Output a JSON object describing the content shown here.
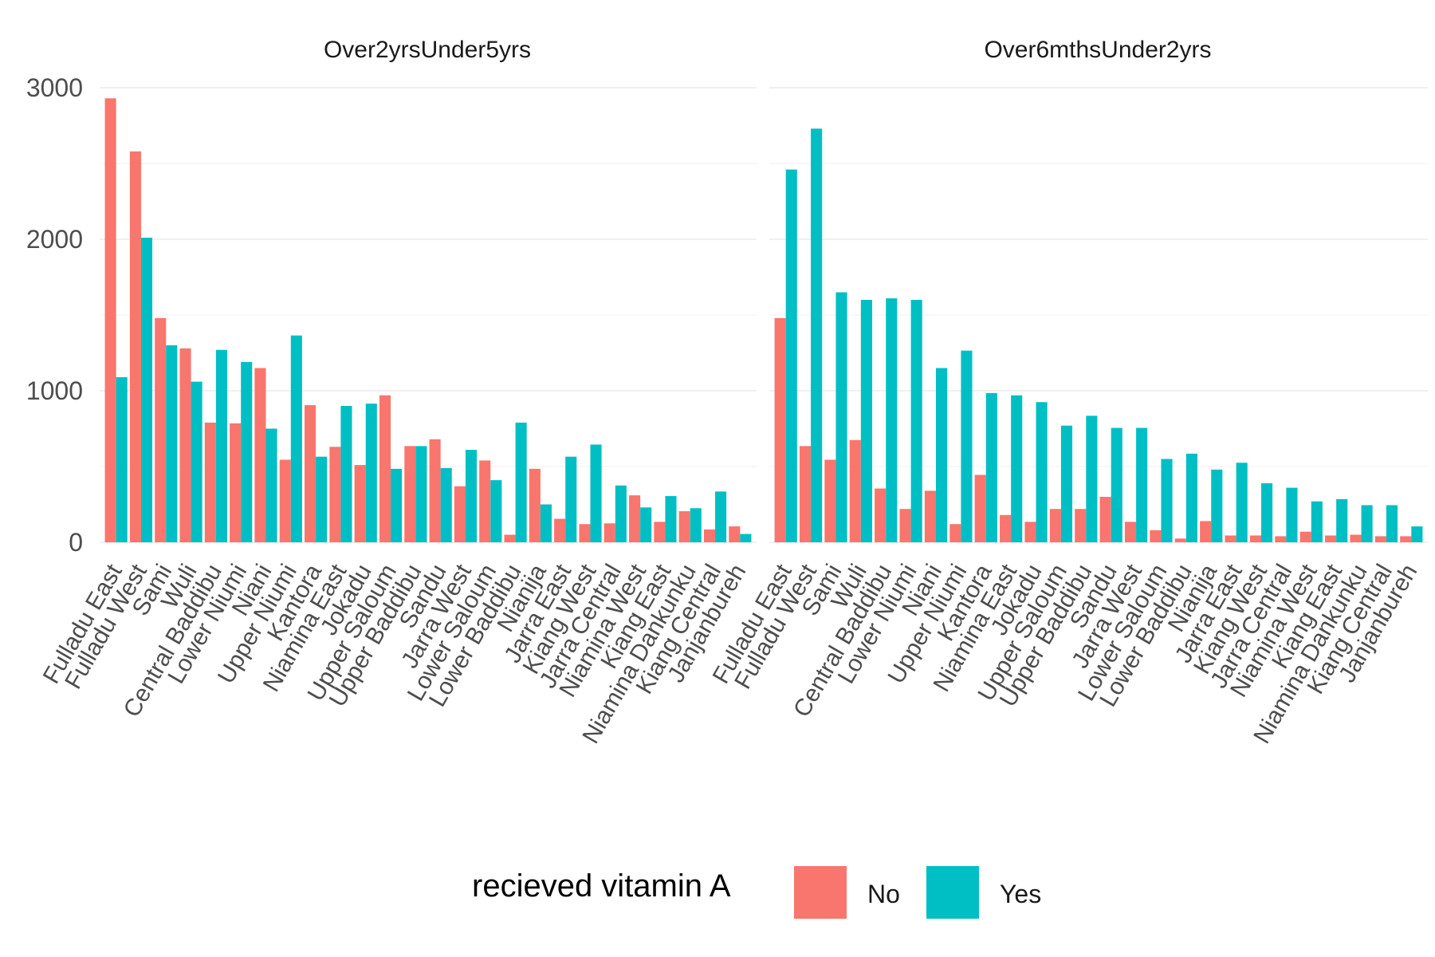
{
  "chart_data": {
    "type": "bar",
    "categories": [
      "Fulladu East",
      "Fulladu West",
      "Sami",
      "Wuli",
      "Central Baddibu",
      "Lower Niumi",
      "Niani",
      "Upper Niumi",
      "Kantora",
      "Niamina East",
      "Jokadu",
      "Upper Saloum",
      "Upper Baddibu",
      "Sandu",
      "Jarra West",
      "Lower Saloum",
      "Lower Baddibu",
      "Nianija",
      "Jarra East",
      "Kiang West",
      "Jarra Central",
      "Niamina West",
      "Kiang East",
      "Niamina Dankunku",
      "Kiang Central",
      "Janjanbureh"
    ],
    "ylim": [
      0,
      3000
    ],
    "yticks": [
      0,
      1000,
      2000,
      3000
    ],
    "grid": true,
    "legend": {
      "title": "recieved vitamin A",
      "position": "bottom",
      "entries": [
        {
          "label": "No",
          "color": "#F8766D"
        },
        {
          "label": "Yes",
          "color": "#00BFC4"
        }
      ]
    },
    "panels": [
      {
        "title": "Over2yrsUnder5yrs",
        "series": [
          {
            "name": "No",
            "values": [
              2930,
              2580,
              1480,
              1280,
              790,
              785,
              1150,
              545,
              905,
              630,
              510,
              970,
              635,
              680,
              370,
              540,
              50,
              485,
              155,
              120,
              125,
              310,
              135,
              205,
              85,
              105
            ]
          },
          {
            "name": "Yes",
            "values": [
              1090,
              2010,
              1300,
              1060,
              1270,
              1190,
              750,
              1365,
              565,
              900,
              915,
              485,
              635,
              490,
              610,
              410,
              790,
              250,
              565,
              645,
              375,
              230,
              305,
              225,
              335,
              55
            ]
          }
        ]
      },
      {
        "title": "Over6mthsUnder2yrs",
        "series": [
          {
            "name": "No",
            "values": [
              1480,
              635,
              545,
              675,
              355,
              220,
              340,
              120,
              445,
              180,
              135,
              220,
              220,
              300,
              135,
              80,
              25,
              140,
              45,
              45,
              40,
              70,
              45,
              50,
              40,
              40
            ]
          },
          {
            "name": "Yes",
            "values": [
              2460,
              2730,
              1650,
              1600,
              1610,
              1600,
              1150,
              1265,
              985,
              970,
              925,
              770,
              835,
              755,
              755,
              550,
              585,
              480,
              525,
              390,
              360,
              270,
              285,
              245,
              245,
              105
            ]
          }
        ]
      }
    ]
  }
}
